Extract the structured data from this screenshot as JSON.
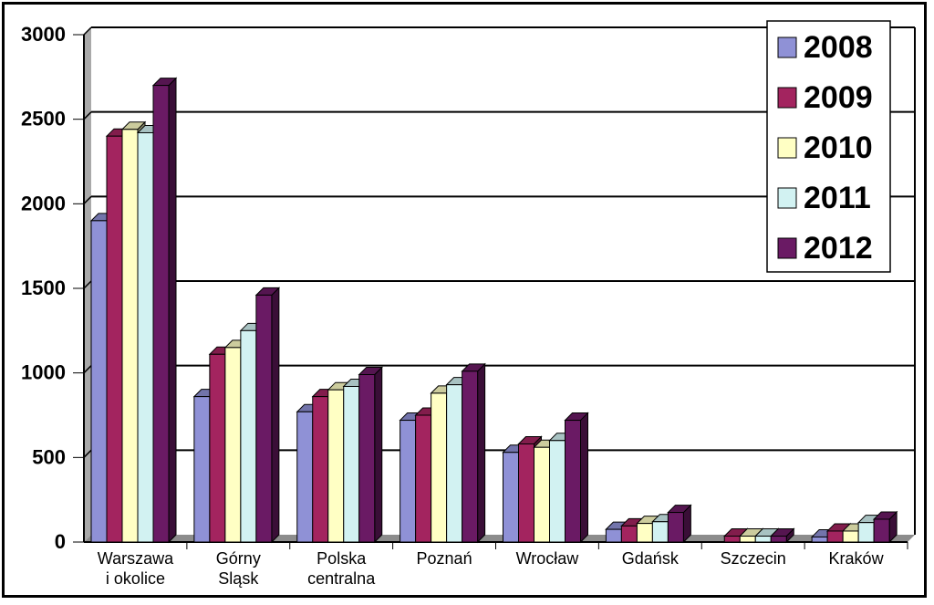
{
  "chart_data": {
    "type": "bar",
    "title": "",
    "xlabel": "",
    "ylabel": "",
    "ylim": [
      0,
      3000
    ],
    "yticks": [
      "0",
      "500",
      "1000",
      "1500",
      "2000",
      "2500",
      "3000"
    ],
    "grid": true,
    "legend_position": "top-right",
    "categories": [
      [
        "Warszawa",
        "i okolice"
      ],
      [
        "Górny",
        "Sląsk"
      ],
      [
        "Polska",
        "centralna"
      ],
      [
        "Poznań"
      ],
      [
        "Wrocław"
      ],
      [
        "Gdańsk"
      ],
      [
        "Szczecin"
      ],
      [
        "Kraków"
      ]
    ],
    "series": [
      {
        "name": "2008",
        "color": "#8f91d6",
        "values": [
          1900,
          860,
          770,
          720,
          530,
          75,
          0,
          30
        ]
      },
      {
        "name": "2009",
        "color": "#a3245f",
        "values": [
          2400,
          1110,
          860,
          750,
          580,
          95,
          35,
          65
        ]
      },
      {
        "name": "2010",
        "color": "#ffffc4",
        "values": [
          2440,
          1150,
          900,
          880,
          560,
          110,
          35,
          65
        ]
      },
      {
        "name": "2011",
        "color": "#d2f2f2",
        "values": [
          2420,
          1250,
          920,
          930,
          600,
          120,
          35,
          115
        ]
      },
      {
        "name": "2012",
        "color": "#6a1a64",
        "values": [
          2700,
          1460,
          990,
          1010,
          720,
          175,
          35,
          135
        ]
      }
    ]
  }
}
